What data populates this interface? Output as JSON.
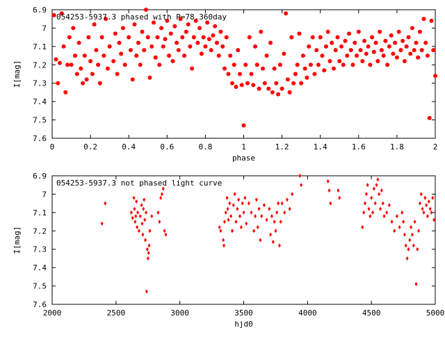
{
  "chart_data": [
    {
      "type": "scatter",
      "title": "054253-5937.3 phased with P=78.360day",
      "xlabel": "phase",
      "ylabel": "I[mag]",
      "xlim": [
        0,
        2
      ],
      "ylim": [
        6.9,
        7.6
      ],
      "y_inverted": true,
      "grid": false,
      "marker_color": "#ff0000",
      "marker_shape": "star-dot",
      "x_ticks": [
        "0",
        "0.2",
        "0.4",
        "0.6",
        "0.8",
        "1",
        "1.2",
        "1.4",
        "1.6",
        "1.8",
        "2"
      ],
      "y_ticks": [
        "6.9",
        "7",
        "7.1",
        "7.2",
        "7.3",
        "7.4",
        "7.5",
        "7.6"
      ],
      "points": [
        [
          0.01,
          6.93
        ],
        [
          0.02,
          7.17
        ],
        [
          0.03,
          7.3
        ],
        [
          0.04,
          7.19
        ],
        [
          0.05,
          6.92
        ],
        [
          0.06,
          7.1
        ],
        [
          0.07,
          7.35
        ],
        [
          0.08,
          7.2
        ],
        [
          0.09,
          7.05
        ],
        [
          0.1,
          7.2
        ],
        [
          0.11,
          7.0
        ],
        [
          0.12,
          7.15
        ],
        [
          0.13,
          7.25
        ],
        [
          0.14,
          7.08
        ],
        [
          0.15,
          7.22
        ],
        [
          0.16,
          7.3
        ],
        [
          0.17,
          7.15
        ],
        [
          0.18,
          7.28
        ],
        [
          0.19,
          7.05
        ],
        [
          0.2,
          7.18
        ],
        [
          0.21,
          7.25
        ],
        [
          0.22,
          6.98
        ],
        [
          0.23,
          7.12
        ],
        [
          0.24,
          7.2
        ],
        [
          0.25,
          7.3
        ],
        [
          0.26,
          7.05
        ],
        [
          0.27,
          7.15
        ],
        [
          0.28,
          6.95
        ],
        [
          0.29,
          7.22
        ],
        [
          0.3,
          7.1
        ],
        [
          0.32,
          7.18
        ],
        [
          0.33,
          7.03
        ],
        [
          0.34,
          7.25
        ],
        [
          0.35,
          7.08
        ],
        [
          0.36,
          7.14
        ],
        [
          0.37,
          7.0
        ],
        [
          0.38,
          7.2
        ],
        [
          0.4,
          7.05
        ],
        [
          0.41,
          7.12
        ],
        [
          0.42,
          7.28
        ],
        [
          0.43,
          6.98
        ],
        [
          0.44,
          7.15
        ],
        [
          0.45,
          7.08
        ],
        [
          0.46,
          7.2
        ],
        [
          0.47,
          7.02
        ],
        [
          0.48,
          7.12
        ],
        [
          0.49,
          6.9
        ],
        [
          0.5,
          7.05
        ],
        [
          0.51,
          7.27
        ],
        [
          0.52,
          7.1
        ],
        [
          0.53,
          6.97
        ],
        [
          0.54,
          7.16
        ],
        [
          0.55,
          7.05
        ],
        [
          0.56,
          7.2
        ],
        [
          0.57,
          7.0
        ],
        [
          0.58,
          7.1
        ],
        [
          0.59,
          7.06
        ],
        [
          0.6,
          6.96
        ],
        [
          0.61,
          7.15
        ],
        [
          0.62,
          7.03
        ],
        [
          0.63,
          7.18
        ],
        [
          0.64,
          6.99
        ],
        [
          0.65,
          7.08
        ],
        [
          0.66,
          7.12
        ],
        [
          0.67,
          6.95
        ],
        [
          0.68,
          7.05
        ],
        [
          0.69,
          7.15
        ],
        [
          0.7,
          7.02
        ],
        [
          0.71,
          6.98
        ],
        [
          0.72,
          7.1
        ],
        [
          0.73,
          7.22
        ],
        [
          0.74,
          7.05
        ],
        [
          0.75,
          6.96
        ],
        [
          0.76,
          7.08
        ],
        [
          0.77,
          7.0
        ],
        [
          0.78,
          7.14
        ],
        [
          0.79,
          7.05
        ],
        [
          0.8,
          7.1
        ],
        [
          0.81,
          6.97
        ],
        [
          0.82,
          7.06
        ],
        [
          0.83,
          7.12
        ],
        [
          0.84,
          7.04
        ],
        [
          0.85,
          6.99
        ],
        [
          0.86,
          7.08
        ],
        [
          0.87,
          7.15
        ],
        [
          0.88,
          7.02
        ],
        [
          0.89,
          7.1
        ],
        [
          0.9,
          7.22
        ],
        [
          0.91,
          7.05
        ],
        [
          0.92,
          7.25
        ],
        [
          0.93,
          7.15
        ],
        [
          0.94,
          7.3
        ],
        [
          0.95,
          7.2
        ],
        [
          0.96,
          7.32
        ],
        [
          0.97,
          7.12
        ],
        [
          0.98,
          7.25
        ],
        [
          0.99,
          7.31
        ],
        [
          1.0,
          7.53
        ],
        [
          1.01,
          7.2
        ],
        [
          1.02,
          7.3
        ],
        [
          1.03,
          7.05
        ],
        [
          1.04,
          7.25
        ],
        [
          1.05,
          7.31
        ],
        [
          1.06,
          7.1
        ],
        [
          1.07,
          7.2
        ],
        [
          1.08,
          7.33
        ],
        [
          1.09,
          7.02
        ],
        [
          1.1,
          7.22
        ],
        [
          1.11,
          7.3
        ],
        [
          1.12,
          7.15
        ],
        [
          1.13,
          7.33
        ],
        [
          1.14,
          7.08
        ],
        [
          1.15,
          7.35
        ],
        [
          1.16,
          7.22
        ],
        [
          1.17,
          7.3
        ],
        [
          1.18,
          7.36
        ],
        [
          1.19,
          7.2
        ],
        [
          1.2,
          7.33
        ],
        [
          1.21,
          7.14
        ],
        [
          1.22,
          6.92
        ],
        [
          1.23,
          7.28
        ],
        [
          1.24,
          7.35
        ],
        [
          1.25,
          7.05
        ],
        [
          1.26,
          7.3
        ],
        [
          1.27,
          7.25
        ],
        [
          1.28,
          7.2
        ],
        [
          1.29,
          7.03
        ],
        [
          1.3,
          7.3
        ],
        [
          1.31,
          7.15
        ],
        [
          1.32,
          7.22
        ],
        [
          1.33,
          7.27
        ],
        [
          1.34,
          7.1
        ],
        [
          1.35,
          7.2
        ],
        [
          1.36,
          7.05
        ],
        [
          1.37,
          7.25
        ],
        [
          1.38,
          7.12
        ],
        [
          1.39,
          7.2
        ],
        [
          1.4,
          7.05
        ],
        [
          1.41,
          7.15
        ],
        [
          1.42,
          7.23
        ],
        [
          1.43,
          7.1
        ],
        [
          1.44,
          7.02
        ],
        [
          1.45,
          7.18
        ],
        [
          1.46,
          7.08
        ],
        [
          1.47,
          7.22
        ],
        [
          1.48,
          7.12
        ],
        [
          1.49,
          7.05
        ],
        [
          1.5,
          7.18
        ],
        [
          1.51,
          7.1
        ],
        [
          1.52,
          7.2
        ],
        [
          1.53,
          7.07
        ],
        [
          1.54,
          7.15
        ],
        [
          1.55,
          7.03
        ],
        [
          1.56,
          7.12
        ],
        [
          1.57,
          7.2
        ],
        [
          1.58,
          7.08
        ],
        [
          1.59,
          7.15
        ],
        [
          1.6,
          7.02
        ],
        [
          1.61,
          7.12
        ],
        [
          1.62,
          7.18
        ],
        [
          1.63,
          7.07
        ],
        [
          1.64,
          7.14
        ],
        [
          1.65,
          7.1
        ],
        [
          1.66,
          7.2
        ],
        [
          1.67,
          7.05
        ],
        [
          1.68,
          7.13
        ],
        [
          1.69,
          7.08
        ],
        [
          1.7,
          7.18
        ],
        [
          1.71,
          7.02
        ],
        [
          1.72,
          7.12
        ],
        [
          1.73,
          7.15
        ],
        [
          1.74,
          7.07
        ],
        [
          1.75,
          7.2
        ],
        [
          1.76,
          7.1
        ],
        [
          1.77,
          7.04
        ],
        [
          1.78,
          7.14
        ],
        [
          1.79,
          7.08
        ],
        [
          1.8,
          7.16
        ],
        [
          1.81,
          7.02
        ],
        [
          1.82,
          7.12
        ],
        [
          1.83,
          7.07
        ],
        [
          1.84,
          7.18
        ],
        [
          1.85,
          7.1
        ],
        [
          1.86,
          7.05
        ],
        [
          1.87,
          7.14
        ],
        [
          1.88,
          7.0
        ],
        [
          1.89,
          7.12
        ],
        [
          1.9,
          7.08
        ],
        [
          1.91,
          7.16
        ],
        [
          1.92,
          7.02
        ],
        [
          1.93,
          7.12
        ],
        [
          1.94,
          6.95
        ],
        [
          1.95,
          7.08
        ],
        [
          1.96,
          7.15
        ],
        [
          1.97,
          7.49
        ],
        [
          1.98,
          6.96
        ],
        [
          1.99,
          7.12
        ],
        [
          2.0,
          7.26
        ]
      ]
    },
    {
      "type": "scatter",
      "title": "054253-5937.3 not phased light curve",
      "xlabel": "hjd0",
      "ylabel": "I[mag]",
      "xlim": [
        2000,
        5000
      ],
      "ylim": [
        6.9,
        7.6
      ],
      "y_inverted": true,
      "grid": false,
      "marker_color": "#ff0000",
      "marker_shape": "diamond",
      "x_ticks": [
        "2000",
        "2500",
        "3000",
        "3500",
        "4000",
        "4500",
        "5000"
      ],
      "y_ticks": [
        "6.9",
        "7",
        "7.1",
        "7.2",
        "7.3",
        "7.4",
        "7.5",
        "7.6"
      ],
      "points": [
        [
          2390,
          7.16
        ],
        [
          2415,
          7.05
        ],
        [
          2620,
          7.1
        ],
        [
          2630,
          7.13
        ],
        [
          2640,
          7.02
        ],
        [
          2645,
          7.08
        ],
        [
          2650,
          7.15
        ],
        [
          2655,
          7.12
        ],
        [
          2660,
          7.04
        ],
        [
          2665,
          7.18
        ],
        [
          2670,
          7.1
        ],
        [
          2680,
          7.2
        ],
        [
          2690,
          7.12
        ],
        [
          2700,
          7.06
        ],
        [
          2705,
          7.16
        ],
        [
          2710,
          7.22
        ],
        [
          2715,
          7.08
        ],
        [
          2720,
          7.03
        ],
        [
          2725,
          7.14
        ],
        [
          2730,
          7.25
        ],
        [
          2735,
          7.1
        ],
        [
          2740,
          7.53
        ],
        [
          2745,
          7.3
        ],
        [
          2750,
          7.35
        ],
        [
          2755,
          7.32
        ],
        [
          2760,
          7.28
        ],
        [
          2765,
          7.2
        ],
        [
          2780,
          7.12
        ],
        [
          2830,
          7.1
        ],
        [
          2840,
          7.15
        ],
        [
          2850,
          7.02
        ],
        [
          2860,
          7.0
        ],
        [
          2870,
          6.97
        ],
        [
          2880,
          7.2
        ],
        [
          2890,
          7.22
        ],
        [
          3310,
          7.18
        ],
        [
          3320,
          7.2
        ],
        [
          3340,
          7.25
        ],
        [
          3345,
          7.28
        ],
        [
          3350,
          7.15
        ],
        [
          3360,
          7.1
        ],
        [
          3370,
          7.02
        ],
        [
          3375,
          7.08
        ],
        [
          3380,
          7.14
        ],
        [
          3390,
          7.05
        ],
        [
          3400,
          7.12
        ],
        [
          3410,
          7.2
        ],
        [
          3420,
          7.06
        ],
        [
          3430,
          7.0
        ],
        [
          3440,
          7.15
        ],
        [
          3450,
          7.08
        ],
        [
          3460,
          7.03
        ],
        [
          3470,
          7.12
        ],
        [
          3480,
          7.18
        ],
        [
          3490,
          7.05
        ],
        [
          3500,
          7.1
        ],
        [
          3510,
          7.02
        ],
        [
          3520,
          7.16
        ],
        [
          3540,
          7.05
        ],
        [
          3560,
          7.1
        ],
        [
          3580,
          7.2
        ],
        [
          3590,
          7.12
        ],
        [
          3600,
          7.03
        ],
        [
          3610,
          7.18
        ],
        [
          3620,
          7.08
        ],
        [
          3630,
          7.25
        ],
        [
          3640,
          7.12
        ],
        [
          3660,
          7.06
        ],
        [
          3680,
          7.14
        ],
        [
          3700,
          7.08
        ],
        [
          3710,
          7.22
        ],
        [
          3720,
          7.12
        ],
        [
          3730,
          7.26
        ],
        [
          3740,
          7.15
        ],
        [
          3750,
          7.2
        ],
        [
          3760,
          7.1
        ],
        [
          3770,
          7.05
        ],
        [
          3780,
          7.28
        ],
        [
          3790,
          7.15
        ],
        [
          3800,
          7.05
        ],
        [
          3820,
          7.1
        ],
        [
          3840,
          7.03
        ],
        [
          3860,
          7.08
        ],
        [
          3880,
          7.0
        ],
        [
          3940,
          6.9
        ],
        [
          3950,
          6.95
        ],
        [
          4160,
          6.93
        ],
        [
          4170,
          6.98
        ],
        [
          4180,
          7.05
        ],
        [
          4240,
          6.98
        ],
        [
          4250,
          7.02
        ],
        [
          4430,
          7.18
        ],
        [
          4440,
          7.1
        ],
        [
          4450,
          7.05
        ],
        [
          4460,
          7.0
        ],
        [
          4470,
          6.95
        ],
        [
          4480,
          7.08
        ],
        [
          4490,
          7.12
        ],
        [
          4500,
          7.02
        ],
        [
          4510,
          7.1
        ],
        [
          4520,
          6.97
        ],
        [
          4530,
          7.05
        ],
        [
          4540,
          6.95
        ],
        [
          4550,
          6.92
        ],
        [
          4560,
          7.0
        ],
        [
          4570,
          7.08
        ],
        [
          4580,
          6.98
        ],
        [
          4590,
          7.05
        ],
        [
          4600,
          7.12
        ],
        [
          4620,
          7.1
        ],
        [
          4640,
          7.06
        ],
        [
          4660,
          7.15
        ],
        [
          4680,
          7.2
        ],
        [
          4700,
          7.12
        ],
        [
          4720,
          7.18
        ],
        [
          4740,
          7.1
        ],
        [
          4750,
          7.15
        ],
        [
          4760,
          7.22
        ],
        [
          4770,
          7.28
        ],
        [
          4780,
          7.35
        ],
        [
          4790,
          7.3
        ],
        [
          4800,
          7.25
        ],
        [
          4810,
          7.18
        ],
        [
          4820,
          7.22
        ],
        [
          4830,
          7.28
        ],
        [
          4840,
          7.15
        ],
        [
          4850,
          7.49
        ],
        [
          4860,
          7.3
        ],
        [
          4870,
          7.2
        ],
        [
          4880,
          7.05
        ],
        [
          4890,
          7.0
        ],
        [
          4900,
          7.08
        ],
        [
          4910,
          7.1
        ],
        [
          4920,
          7.02
        ],
        [
          4930,
          7.06
        ],
        [
          4940,
          7.12
        ],
        [
          4950,
          7.04
        ],
        [
          4960,
          7.08
        ],
        [
          4970,
          7.1
        ],
        [
          4980,
          7.02
        ],
        [
          4990,
          7.14
        ]
      ]
    }
  ]
}
